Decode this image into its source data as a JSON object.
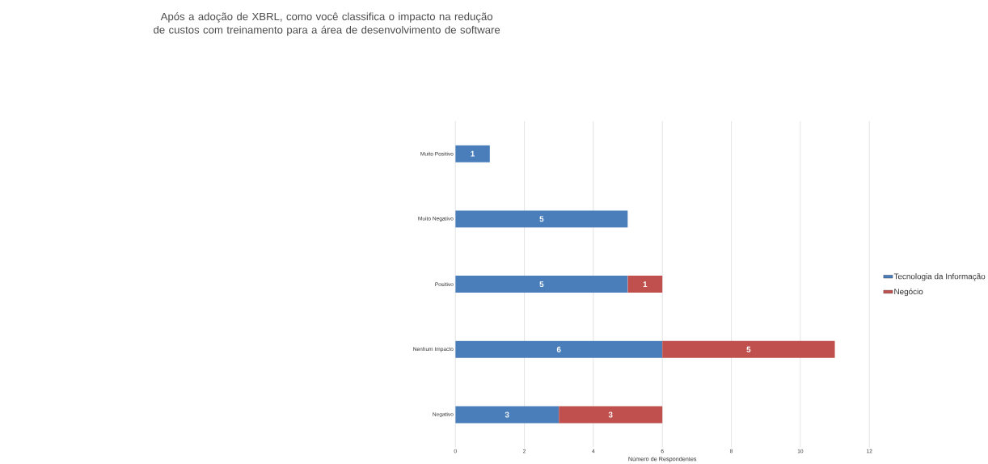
{
  "chart_data": {
    "type": "bar",
    "orientation": "horizontal",
    "stacked": true,
    "title": "Após a adoção de XBRL, como você classifica o impacto na redução de custos com treinamento para a área de desenvolvimento de software",
    "xlabel": "Número de Respondentes",
    "categories": [
      "Muito Positivo",
      "Muito Negativo",
      "Positivo",
      "Nenhum Impacto",
      "Negativo"
    ],
    "series": [
      {
        "name": "Tecnologia da Informação",
        "color": "#4a7ebb",
        "values": [
          1,
          5,
          5,
          6,
          3
        ]
      },
      {
        "name": "Negócio",
        "color": "#c0504d",
        "values": [
          null,
          null,
          1,
          5,
          3
        ]
      }
    ],
    "xlim": [
      0,
      12
    ],
    "xticks": [
      0,
      2,
      4,
      6,
      8,
      10,
      12
    ],
    "grid": "x",
    "legend": "right",
    "data_labels": true
  }
}
